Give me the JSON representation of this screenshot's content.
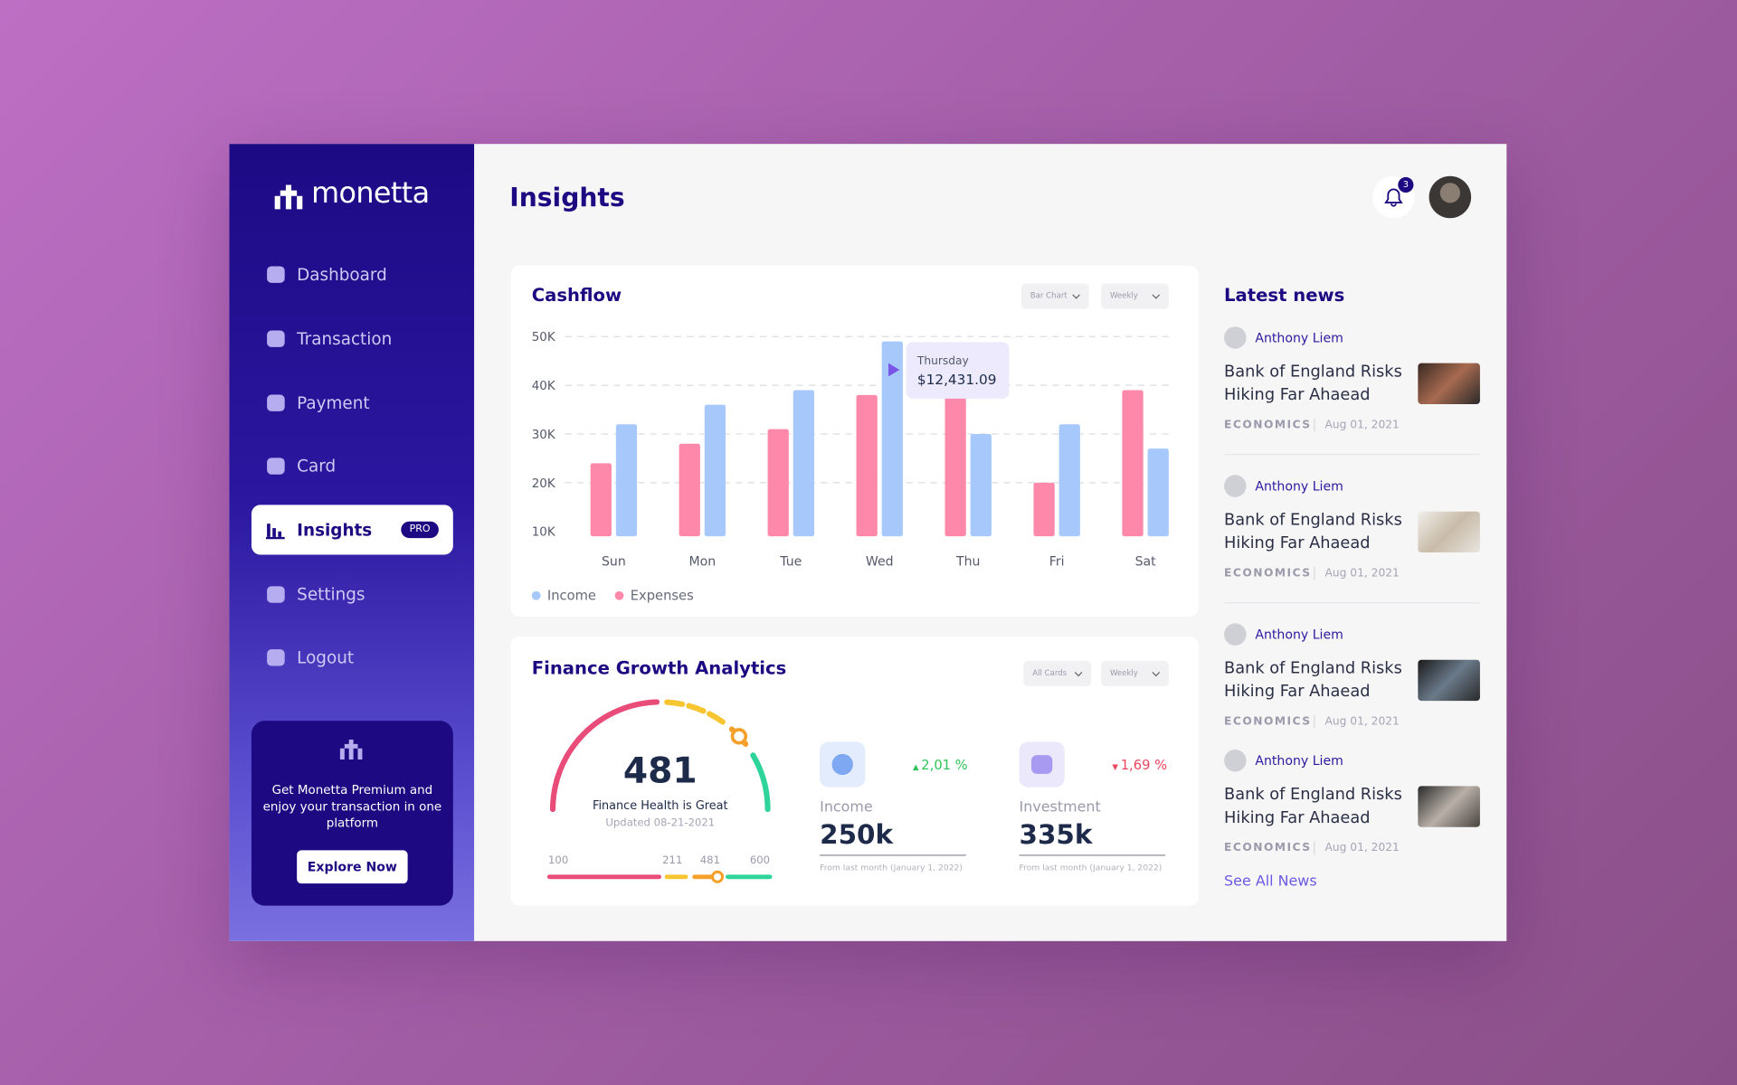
{
  "sidebar": {
    "brand": "monetta",
    "nav": [
      "Dashboard",
      "Transaction",
      "Payment",
      "Card",
      "Insights",
      "Settings",
      "Logout"
    ],
    "badge": "PRO",
    "promo": {
      "text": "Get Monetta Premium and enjoy your transaction in one platform",
      "button": "Explore Now"
    }
  },
  "header": {
    "title": "Insights",
    "notifications": 3
  },
  "cashflow": {
    "title": "Cashflow",
    "controls": [
      "Bar Chart",
      "Weekly"
    ],
    "chart_data": {
      "type": "bar",
      "categories": [
        "Sun",
        "Mon",
        "Tue",
        "Wed",
        "Thu",
        "Fri",
        "Sat"
      ],
      "series": [
        {
          "name": "Income",
          "color": "#a6c8fa",
          "values": [
            32000,
            36000,
            39000,
            49000,
            30000,
            32000,
            27000
          ]
        },
        {
          "name": "Expenses",
          "color": "#fd88a9",
          "values": [
            24000,
            28000,
            31000,
            38000,
            38000,
            20000,
            39000
          ]
        }
      ],
      "ylim": [
        9000,
        50000
      ],
      "yticks": [
        {
          "value": 10000,
          "label": "10K"
        },
        {
          "value": 20000,
          "label": "20K"
        },
        {
          "value": 30000,
          "label": "30K"
        },
        {
          "value": 40000,
          "label": "40K"
        },
        {
          "value": 50000,
          "label": "50K"
        }
      ],
      "grid": true,
      "tooltip": {
        "title": "Thursday",
        "value": "$12,431.09"
      }
    }
  },
  "finance": {
    "title": "Finance Growth Analytics",
    "controls": [
      "All Cards",
      "Weekly"
    ],
    "gauge": {
      "value": 481,
      "caption": "Finance Health is Great",
      "updated": "Updated 08-21-2021",
      "scale": [
        100,
        211,
        481,
        600
      ]
    },
    "stats": [
      {
        "label": "Income",
        "value": "250k",
        "change": "2,01 %",
        "note": "From last month (January 1, 2022)"
      },
      {
        "label": "Investment",
        "value": "335k",
        "change": "1,69 %",
        "note": "From last month (January 1, 2022)"
      }
    ]
  },
  "news": {
    "title": "Latest news",
    "items": [
      {
        "author": "Anthony Liem",
        "title": "Bank of England Risks Hiking Far Ahaead",
        "category": "ECONOMICS",
        "date": "Aug 01, 2021"
      },
      {
        "author": "Anthony Liem",
        "title": "Bank of England Risks Hiking Far Ahaead",
        "category": "ECONOMICS",
        "date": "Aug 01, 2021"
      },
      {
        "author": "Anthony Liem",
        "title": "Bank of England Risks Hiking Far Ahaead",
        "category": "ECONOMICS",
        "date": "Aug 01, 2021"
      },
      {
        "author": "Anthony Liem",
        "title": "Bank of England Risks Hiking Far Ahaead",
        "category": "ECONOMICS",
        "date": "Aug 01, 2021"
      }
    ],
    "link": "See All News"
  }
}
